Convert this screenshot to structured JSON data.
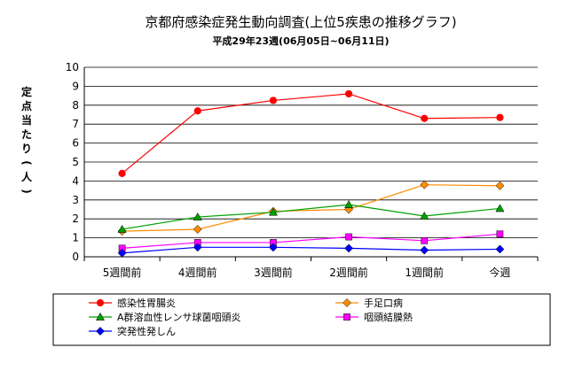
{
  "chart_data": {
    "type": "line",
    "title": "京都府感染症発生動向調査(上位5疾患の推移グラフ)",
    "subtitle": "平成29年23週(06月05日~06月11日)",
    "ylabel_chars": [
      "定",
      "点",
      "当",
      "た",
      "り",
      "(",
      "人",
      ")"
    ],
    "ylabel": "定点当たり(人)",
    "xlabel": "",
    "categories": [
      "5週間前",
      "4週間前",
      "3週間前",
      "2週間前",
      "1週間前",
      "今週"
    ],
    "ylim": [
      0,
      10
    ],
    "yticks": [
      "0",
      "1",
      "2",
      "3",
      "4",
      "5",
      "6",
      "7",
      "8",
      "9",
      "10"
    ],
    "grid": true,
    "legend_position": "bottom",
    "series": [
      {
        "name": "感染性胃腸炎",
        "color": "#ff0000",
        "marker": "circle",
        "values": [
          4.4,
          7.7,
          8.25,
          8.6,
          7.3,
          7.35
        ]
      },
      {
        "name": "手足口病",
        "color": "#ff8c00",
        "marker": "diamond",
        "values": [
          1.35,
          1.45,
          2.4,
          2.5,
          3.8,
          3.75
        ]
      },
      {
        "name": "A群溶血性レンサ球菌咽頭炎",
        "color": "#00a000",
        "marker": "triangle",
        "values": [
          1.45,
          2.1,
          2.35,
          2.75,
          2.15,
          2.55
        ]
      },
      {
        "name": "咽頭結膜熱",
        "color": "#ff00ff",
        "marker": "square",
        "values": [
          0.45,
          0.75,
          0.75,
          1.05,
          0.85,
          1.2
        ]
      },
      {
        "name": "突発性発しん",
        "color": "#0000ff",
        "marker": "diamond",
        "values": [
          0.2,
          0.5,
          0.5,
          0.45,
          0.35,
          0.4
        ]
      }
    ]
  }
}
